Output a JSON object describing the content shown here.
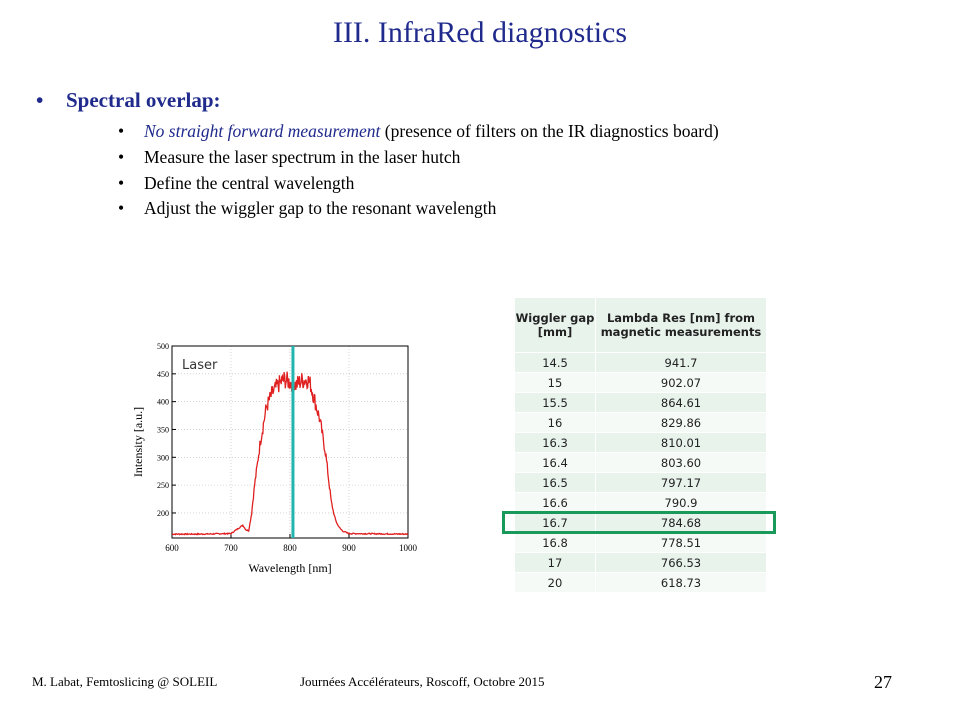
{
  "slide": {
    "title": "III. InfraRed diagnostics",
    "main_bullet": "Spectral overlap:",
    "sub_bullets": [
      {
        "emph": "No straight forward measurement",
        "rest": " (presence of filters on the IR diagnostics board)"
      },
      {
        "emph": "",
        "rest": "Measure the laser spectrum in the laser hutch"
      },
      {
        "emph": "",
        "rest": "Define the central wavelength"
      },
      {
        "emph": "",
        "rest": "Adjust the wiggler gap to the resonant wavelength"
      }
    ],
    "bullet_char": "•"
  },
  "table": {
    "headers": [
      "Wiggler gap [mm]",
      "Lambda Res [nm] from magnetic measurements"
    ],
    "rows": [
      [
        "14.5",
        "941.7"
      ],
      [
        "15",
        "902.07"
      ],
      [
        "15.5",
        "864.61"
      ],
      [
        "16",
        "829.86"
      ],
      [
        "16.3",
        "810.01"
      ],
      [
        "16.4",
        "803.60"
      ],
      [
        "16.5",
        "797.17"
      ],
      [
        "16.6",
        "790.9"
      ],
      [
        "16.7",
        "784.68"
      ],
      [
        "16.8",
        "778.51"
      ],
      [
        "17",
        "766.53"
      ],
      [
        "20",
        "618.73"
      ]
    ],
    "highlighted_row": 8,
    "highlight_color": "#1a9a5a"
  },
  "chart_data": {
    "type": "line",
    "legend_label": "Laser",
    "xlabel": "Wavelength [nm]",
    "ylabel": "Intensity [a.u.]",
    "xlim": [
      600,
      1000
    ],
    "ylim": [
      155,
      500
    ],
    "xticks": [
      600,
      700,
      800,
      900,
      1000
    ],
    "yticks": [
      200,
      250,
      300,
      350,
      400,
      450,
      500
    ],
    "grid": true,
    "series": [
      {
        "color": "#e02020",
        "x": [
          600,
          650,
          700,
          720,
          725,
          730,
          735,
          740,
          745,
          750,
          760,
          770,
          780,
          790,
          800,
          810,
          820,
          830,
          835,
          840,
          850,
          860,
          870,
          875,
          880,
          885,
          890,
          900,
          1000
        ],
        "y": [
          162,
          162,
          163,
          178,
          170,
          168,
          200,
          250,
          290,
          330,
          390,
          415,
          430,
          440,
          435,
          430,
          438,
          440,
          430,
          410,
          370,
          310,
          220,
          195,
          180,
          172,
          167,
          163,
          162
        ]
      }
    ],
    "marker_x": 805,
    "marker_color": "#22b5b0"
  },
  "footer": {
    "left": "M. Labat, Femtoslicing @ SOLEIL",
    "middle": "Journées Accélérateurs, Roscoff, Octobre 2015",
    "page_number": "27"
  }
}
